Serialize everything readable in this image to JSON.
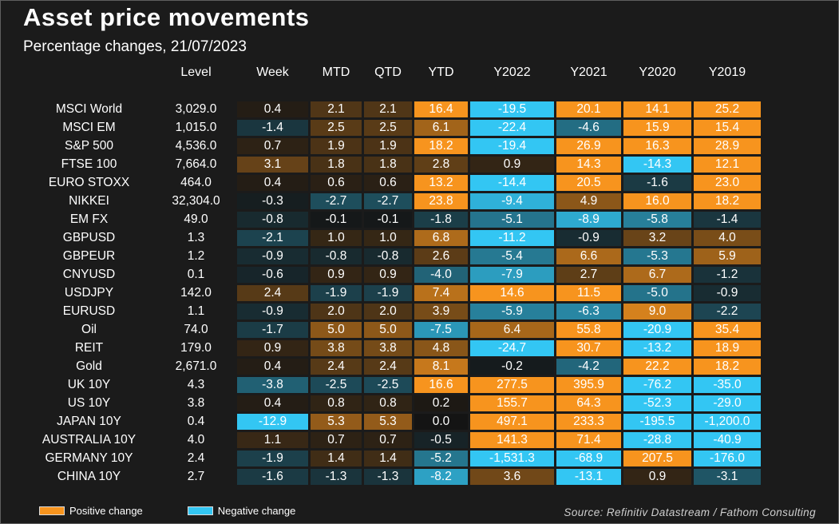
{
  "title": "Asset price movements",
  "subtitle": "Percentage changes, 21/07/2023",
  "legend": {
    "positive": "Positive change",
    "negative": "Negative change"
  },
  "source": "Source: Refinitiv Datastream / Fathom Consulting",
  "colors": {
    "background": "#1B1B1B",
    "cell_base": "#141414",
    "positive": "#F7941E",
    "negative": "#33C6F3",
    "text": "#FFFFFF",
    "frame_border": "#5F5F5F"
  },
  "chart_data": {
    "type": "heatmap",
    "title": "Asset price movements",
    "subtitle": "Percentage changes, 21/07/2023",
    "columns": [
      "Level",
      "Week",
      "MTD",
      "QTD",
      "YTD",
      "Y2022",
      "Y2021",
      "Y2020",
      "Y2019"
    ],
    "value_columns": [
      "Week",
      "MTD",
      "QTD",
      "YTD",
      "Y2022",
      "Y2021",
      "Y2020",
      "Y2019"
    ],
    "color_scale": {
      "positive": "#F7941E",
      "negative": "#33C6F3",
      "saturation_abs_value": 11
    },
    "rows": [
      {
        "name": "MSCI World",
        "level": 3029.0,
        "values": [
          0.4,
          2.1,
          2.1,
          16.4,
          -19.5,
          20.1,
          14.1,
          25.2
        ]
      },
      {
        "name": "MSCI EM",
        "level": 1015.0,
        "values": [
          -1.4,
          2.5,
          2.5,
          6.1,
          -22.4,
          -4.6,
          15.9,
          15.4
        ]
      },
      {
        "name": "S&P 500",
        "level": 4536.0,
        "values": [
          0.7,
          1.9,
          1.9,
          18.2,
          -19.4,
          26.9,
          16.3,
          28.9
        ]
      },
      {
        "name": "FTSE 100",
        "level": 7664.0,
        "values": [
          3.1,
          1.8,
          1.8,
          2.8,
          0.9,
          14.3,
          -14.3,
          12.1
        ]
      },
      {
        "name": "EURO STOXX",
        "level": 464.0,
        "values": [
          0.4,
          0.6,
          0.6,
          13.2,
          -14.4,
          20.5,
          -1.6,
          23.0
        ]
      },
      {
        "name": "NIKKEI",
        "level": 32304.0,
        "values": [
          -0.3,
          -2.7,
          -2.7,
          23.8,
          -9.4,
          4.9,
          16.0,
          18.2
        ]
      },
      {
        "name": "EM FX",
        "level": 49.0,
        "values": [
          -0.8,
          -0.1,
          -0.1,
          -1.8,
          -5.1,
          -8.9,
          -5.8,
          -1.4
        ]
      },
      {
        "name": "GBPUSD",
        "level": 1.3,
        "values": [
          -2.1,
          1.0,
          1.0,
          6.8,
          -11.2,
          -0.9,
          3.2,
          4.0
        ]
      },
      {
        "name": "GBPEUR",
        "level": 1.2,
        "values": [
          -0.9,
          -0.8,
          -0.8,
          2.6,
          -5.4,
          6.6,
          -5.3,
          5.9
        ]
      },
      {
        "name": "CNYUSD",
        "level": 0.1,
        "values": [
          -0.6,
          0.9,
          0.9,
          -4.0,
          -7.9,
          2.7,
          6.7,
          -1.2
        ]
      },
      {
        "name": "USDJPY",
        "level": 142.0,
        "values": [
          2.4,
          -1.9,
          -1.9,
          7.4,
          14.6,
          11.5,
          -5.0,
          -0.9
        ]
      },
      {
        "name": "EURUSD",
        "level": 1.1,
        "values": [
          -0.9,
          2.0,
          2.0,
          3.9,
          -5.9,
          -6.3,
          9.0,
          -2.2
        ]
      },
      {
        "name": "Oil",
        "level": 74.0,
        "values": [
          -1.7,
          5.0,
          5.0,
          -7.5,
          6.4,
          55.8,
          -20.9,
          35.4
        ]
      },
      {
        "name": "REIT",
        "level": 179.0,
        "values": [
          0.9,
          3.8,
          3.8,
          4.8,
          -24.7,
          30.7,
          -13.2,
          18.9
        ]
      },
      {
        "name": "Gold",
        "level": 2671.0,
        "values": [
          0.4,
          2.4,
          2.4,
          8.1,
          -0.2,
          -4.2,
          22.2,
          18.2
        ]
      },
      {
        "name": "UK 10Y",
        "level": 4.3,
        "values": [
          -3.8,
          -2.5,
          -2.5,
          16.6,
          277.5,
          395.9,
          -76.2,
          -35.0
        ]
      },
      {
        "name": "US 10Y",
        "level": 3.8,
        "values": [
          0.4,
          0.8,
          0.8,
          0.2,
          155.7,
          64.3,
          -52.3,
          -29.0
        ]
      },
      {
        "name": "JAPAN 10Y",
        "level": 0.4,
        "values": [
          -12.9,
          5.3,
          5.3,
          0.0,
          497.1,
          233.3,
          -195.5,
          -1200.0
        ]
      },
      {
        "name": "AUSTRALIA 10Y",
        "level": 4.0,
        "values": [
          1.1,
          0.7,
          0.7,
          -0.5,
          141.3,
          71.4,
          -28.8,
          -40.9
        ]
      },
      {
        "name": "GERMANY 10Y",
        "level": 2.4,
        "values": [
          -1.9,
          1.4,
          1.4,
          -5.2,
          -1531.3,
          -68.9,
          207.5,
          -176.0
        ]
      },
      {
        "name": "CHINA 10Y",
        "level": 2.7,
        "values": [
          -1.6,
          -1.3,
          -1.3,
          -8.2,
          3.6,
          -13.1,
          0.9,
          -3.1
        ]
      }
    ]
  }
}
